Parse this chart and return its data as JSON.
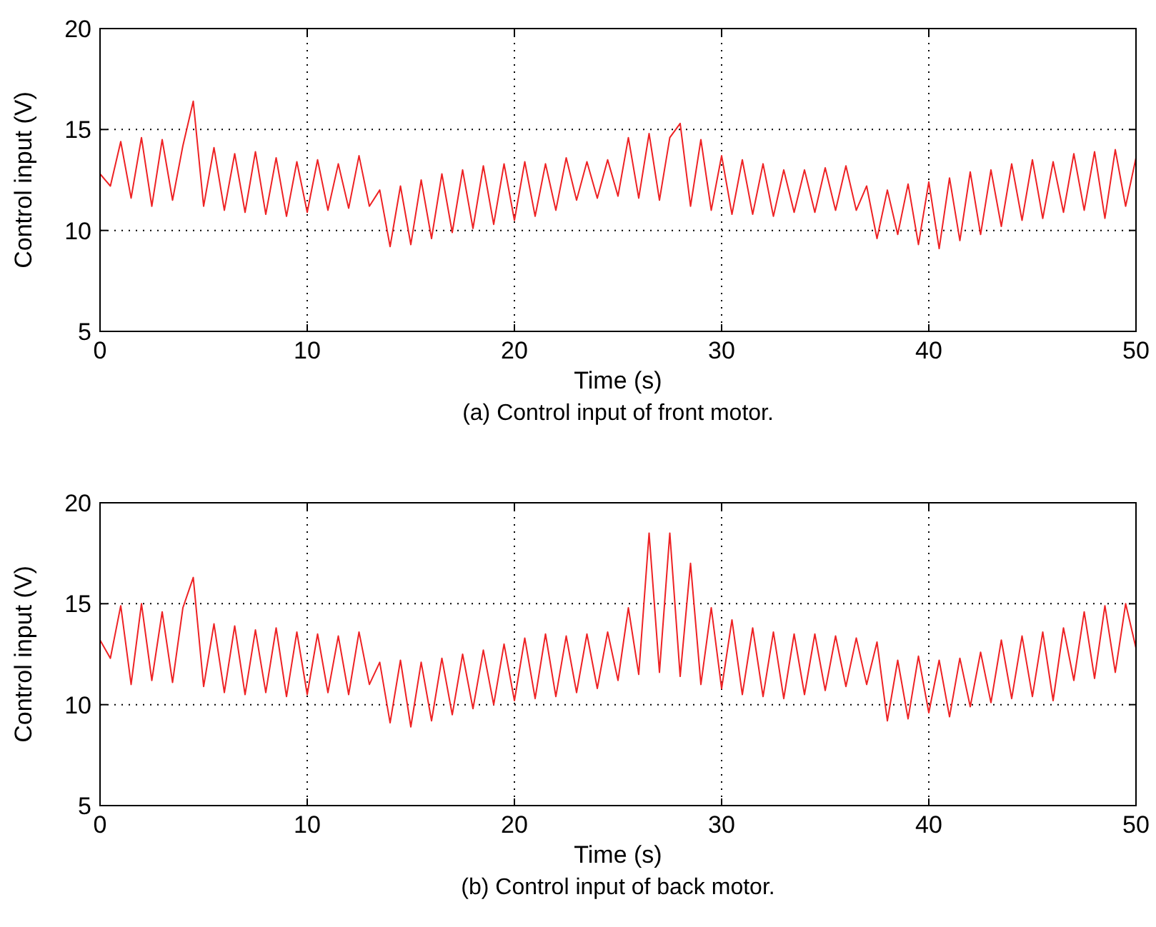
{
  "chart_data": [
    {
      "type": "line",
      "xlabel": "Time (s)",
      "ylabel": "Control input (V)",
      "annotations": [
        "(a) Control input of front motor."
      ],
      "xlim": [
        0,
        50
      ],
      "xticks": [
        0,
        10,
        20,
        30,
        40,
        50
      ],
      "ylim": [
        5,
        20
      ],
      "yticks": [
        5,
        10,
        15,
        20
      ],
      "grid": true,
      "series": [
        {
          "color": "#ee2224",
          "x": [
            0,
            0.5,
            1,
            1.5,
            2,
            2.5,
            3,
            3.5,
            4,
            4.5,
            5,
            5.5,
            6,
            6.5,
            7,
            7.5,
            8,
            8.5,
            9,
            9.5,
            10,
            10.5,
            11,
            11.5,
            12,
            12.5,
            13,
            13.5,
            14,
            14.5,
            15,
            15.5,
            16,
            16.5,
            17,
            17.5,
            18,
            18.5,
            19,
            19.5,
            20,
            20.5,
            21,
            21.5,
            22,
            22.5,
            23,
            23.5,
            24,
            24.5,
            25,
            25.5,
            26,
            26.5,
            27,
            27.5,
            28,
            28.5,
            29,
            29.5,
            30,
            30.5,
            31,
            31.5,
            32,
            32.5,
            33,
            33.5,
            34,
            34.5,
            35,
            35.5,
            36,
            36.5,
            37,
            37.5,
            38,
            38.5,
            39,
            39.5,
            40,
            40.5,
            41,
            41.5,
            42,
            42.5,
            43,
            43.5,
            44,
            44.5,
            45,
            45.5,
            46,
            46.5,
            47,
            47.5,
            48,
            48.5,
            49,
            49.5,
            50
          ],
          "values": [
            12.8,
            12.2,
            14.4,
            11.6,
            14.6,
            11.2,
            14.5,
            11.5,
            14.2,
            16.4,
            11.2,
            14.1,
            11,
            13.8,
            10.9,
            13.9,
            10.8,
            13.6,
            10.7,
            13.4,
            10.9,
            13.5,
            11,
            13.3,
            11.1,
            13.7,
            11.2,
            12,
            9.2,
            12.2,
            9.3,
            12.5,
            9.6,
            12.8,
            9.9,
            13,
            10.1,
            13.2,
            10.3,
            13.3,
            10.5,
            13.4,
            10.7,
            13.3,
            11,
            13.6,
            11.5,
            13.4,
            11.6,
            13.5,
            11.7,
            14.6,
            11.6,
            14.8,
            11.5,
            14.6,
            15.3,
            11.2,
            14.5,
            11,
            13.7,
            10.8,
            13.5,
            10.8,
            13.3,
            10.7,
            13,
            10.9,
            13,
            10.9,
            13.1,
            11,
            13.2,
            11,
            12.2,
            9.6,
            12,
            9.8,
            12.3,
            9.3,
            12.4,
            9.1,
            12.6,
            9.5,
            12.9,
            9.8,
            13,
            10.2,
            13.3,
            10.5,
            13.5,
            10.6,
            13.4,
            10.9,
            13.8,
            11,
            13.9,
            10.6,
            14,
            11.2,
            13.6
          ]
        }
      ]
    },
    {
      "type": "line",
      "xlabel": "Time (s)",
      "ylabel": "Control input (V)",
      "annotations": [
        "(b) Control input of back motor."
      ],
      "xlim": [
        0,
        50
      ],
      "xticks": [
        0,
        10,
        20,
        30,
        40,
        50
      ],
      "ylim": [
        5,
        20
      ],
      "yticks": [
        5,
        10,
        15,
        20
      ],
      "grid": true,
      "series": [
        {
          "color": "#ee2224",
          "x": [
            0,
            0.5,
            1,
            1.5,
            2,
            2.5,
            3,
            3.5,
            4,
            4.5,
            5,
            5.5,
            6,
            6.5,
            7,
            7.5,
            8,
            8.5,
            9,
            9.5,
            10,
            10.5,
            11,
            11.5,
            12,
            12.5,
            13,
            13.5,
            14,
            14.5,
            15,
            15.5,
            16,
            16.5,
            17,
            17.5,
            18,
            18.5,
            19,
            19.5,
            20,
            20.5,
            21,
            21.5,
            22,
            22.5,
            23,
            23.5,
            24,
            24.5,
            25,
            25.5,
            26,
            26.5,
            27,
            27.5,
            28,
            28.5,
            29,
            29.5,
            30,
            30.5,
            31,
            31.5,
            32,
            32.5,
            33,
            33.5,
            34,
            34.5,
            35,
            35.5,
            36,
            36.5,
            37,
            37.5,
            38,
            38.5,
            39,
            39.5,
            40,
            40.5,
            41,
            41.5,
            42,
            42.5,
            43,
            43.5,
            44,
            44.5,
            45,
            45.5,
            46,
            46.5,
            47,
            47.5,
            48,
            48.5,
            49,
            49.5,
            50
          ],
          "values": [
            13.2,
            12.3,
            14.9,
            11,
            15,
            11.2,
            14.6,
            11.1,
            14.8,
            16.3,
            10.9,
            14,
            10.6,
            13.9,
            10.5,
            13.7,
            10.6,
            13.8,
            10.4,
            13.6,
            10.5,
            13.5,
            10.6,
            13.4,
            10.5,
            13.6,
            11,
            12.1,
            9.1,
            12.2,
            8.9,
            12.1,
            9.2,
            12.3,
            9.5,
            12.5,
            9.8,
            12.7,
            10,
            13,
            10.2,
            13.3,
            10.3,
            13.5,
            10.4,
            13.4,
            10.6,
            13.5,
            10.8,
            13.6,
            11.2,
            14.8,
            11.5,
            18.5,
            11.6,
            18.5,
            11.4,
            17,
            11,
            14.8,
            10.8,
            14.2,
            10.5,
            13.8,
            10.4,
            13.6,
            10.3,
            13.5,
            10.5,
            13.5,
            10.7,
            13.4,
            10.9,
            13.3,
            11,
            13.1,
            9.2,
            12.2,
            9.3,
            12.4,
            9.6,
            12.2,
            9.4,
            12.3,
            9.9,
            12.6,
            10.1,
            13.2,
            10.3,
            13.4,
            10.4,
            13.6,
            10.2,
            13.8,
            11.2,
            14.6,
            11.3,
            14.9,
            11.6,
            15,
            12.8
          ]
        }
      ]
    }
  ]
}
